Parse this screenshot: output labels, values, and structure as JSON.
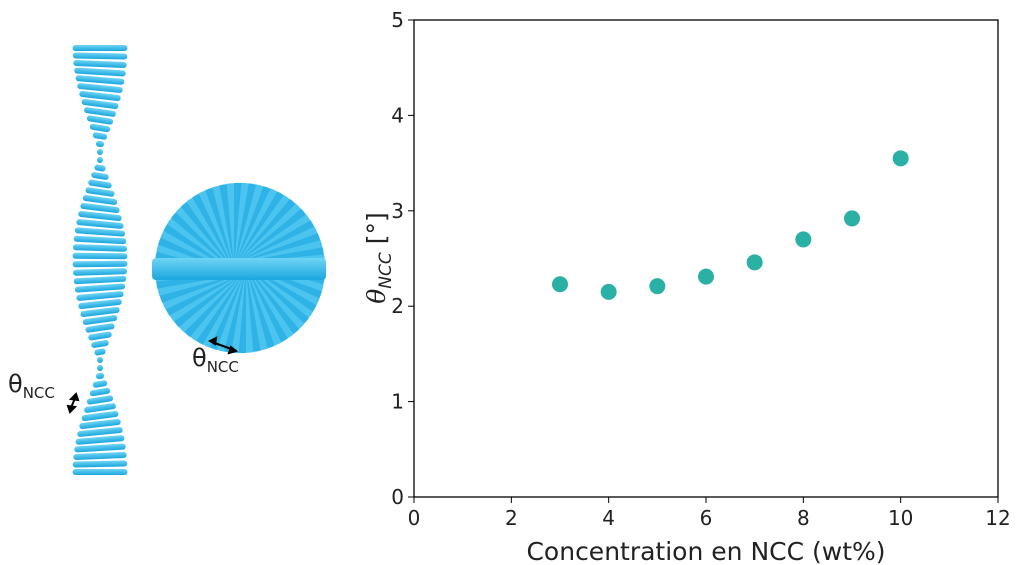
{
  "illustration": {
    "labels": [
      {
        "symbol": "θ",
        "subscript": "NCC"
      },
      {
        "symbol": "θ",
        "subscript": "NCC"
      }
    ]
  },
  "chart_data": {
    "type": "scatter",
    "xlabel": "Concentration en NCC (wt%)",
    "ylabel": {
      "symbol": "θ",
      "subscript": "NCC",
      "unit": "[°]"
    },
    "x": [
      3,
      4,
      5,
      6,
      7,
      8,
      9,
      10
    ],
    "values": [
      2.23,
      2.15,
      2.21,
      2.31,
      2.46,
      2.7,
      2.92,
      3.55
    ],
    "color": "#2ab0a5",
    "xlim": [
      0,
      12
    ],
    "xticks": [
      0,
      2,
      4,
      6,
      8,
      10,
      12
    ],
    "ylim": [
      0,
      5
    ],
    "yticks": [
      0,
      1,
      2,
      3,
      4,
      5
    ],
    "grid": false
  }
}
